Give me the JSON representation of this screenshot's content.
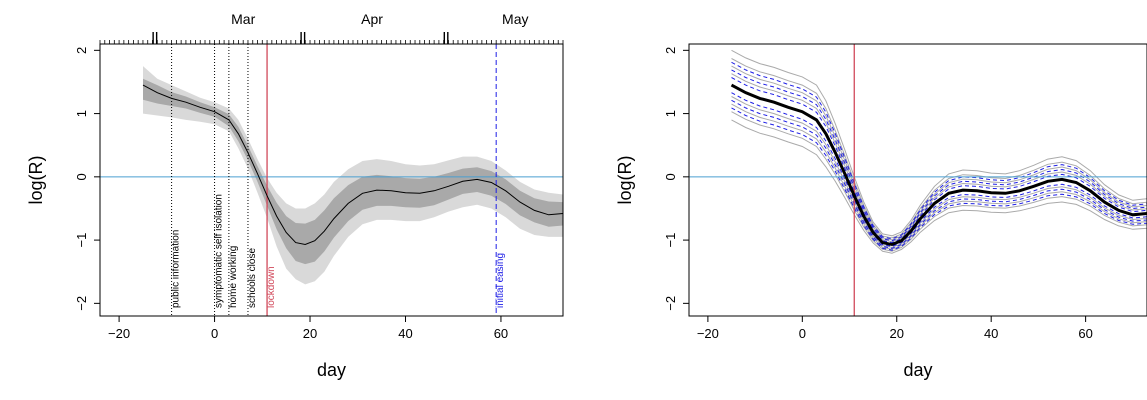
{
  "chart_data": [
    {
      "type": "line",
      "title": "",
      "xlabel": "day",
      "ylabel": "log(R)",
      "xlim": [
        -24,
        73
      ],
      "ylim": [
        -2.2,
        2.1
      ],
      "xticks": [
        -20,
        0,
        20,
        40,
        60
      ],
      "yticks": [
        -2,
        -1,
        0,
        1,
        2
      ],
      "top_axis_months": [
        {
          "label": "Mar",
          "x": 6
        },
        {
          "label": "Apr",
          "x": 33
        },
        {
          "label": "May",
          "x": 63
        }
      ],
      "month_boundaries": [
        -12.5,
        18.5,
        48.5
      ],
      "top_axis_daily_ticks": true,
      "reference_line": {
        "y": 0,
        "color": "#4a9fd0"
      },
      "x": [
        -15,
        -12,
        -9,
        -6,
        -3,
        0,
        3,
        5,
        7,
        9,
        11,
        13,
        15,
        17,
        19,
        21,
        23,
        25,
        28,
        31,
        34,
        37,
        40,
        43,
        46,
        49,
        52,
        55,
        58,
        61,
        64,
        67,
        70,
        73
      ],
      "series": [
        {
          "values": [
            1.45,
            1.33,
            1.24,
            1.18,
            1.1,
            1.03,
            0.9,
            0.68,
            0.38,
            0.05,
            -0.3,
            -0.62,
            -0.88,
            -1.04,
            -1.07,
            -1.01,
            -0.86,
            -0.66,
            -0.42,
            -0.26,
            -0.21,
            -0.22,
            -0.25,
            -0.26,
            -0.22,
            -0.15,
            -0.07,
            -0.04,
            -0.09,
            -0.22,
            -0.4,
            -0.53,
            -0.6,
            -0.58
          ]
        }
      ],
      "band_outer_upper": [
        1.75,
        1.55,
        1.45,
        1.35,
        1.25,
        1.18,
        1.08,
        0.9,
        0.6,
        0.28,
        -0.02,
        -0.25,
        -0.42,
        -0.5,
        -0.5,
        -0.42,
        -0.28,
        -0.08,
        0.12,
        0.25,
        0.28,
        0.25,
        0.2,
        0.18,
        0.2,
        0.26,
        0.32,
        0.32,
        0.25,
        0.1,
        -0.08,
        -0.2,
        -0.25,
        -0.28
      ],
      "band_outer_lower": [
        1.0,
        0.97,
        0.94,
        0.9,
        0.87,
        0.83,
        0.72,
        0.45,
        0.13,
        -0.25,
        -0.65,
        -1.1,
        -1.45,
        -1.62,
        -1.7,
        -1.65,
        -1.5,
        -1.25,
        -0.95,
        -0.75,
        -0.68,
        -0.68,
        -0.7,
        -0.7,
        -0.64,
        -0.55,
        -0.48,
        -0.44,
        -0.5,
        -0.64,
        -0.82,
        -0.92,
        -0.95,
        -0.95
      ],
      "band_inner_upper": [
        1.55,
        1.45,
        1.34,
        1.27,
        1.18,
        1.1,
        0.99,
        0.79,
        0.49,
        0.17,
        -0.14,
        -0.41,
        -0.62,
        -0.73,
        -0.74,
        -0.68,
        -0.53,
        -0.34,
        -0.13,
        0.0,
        0.03,
        0.01,
        -0.02,
        -0.03,
        0.0,
        0.06,
        0.13,
        0.15,
        0.09,
        -0.04,
        -0.22,
        -0.34,
        -0.39,
        -0.4
      ],
      "band_inner_lower": [
        1.22,
        1.16,
        1.12,
        1.08,
        1.01,
        0.95,
        0.8,
        0.56,
        0.26,
        -0.08,
        -0.46,
        -0.83,
        -1.13,
        -1.33,
        -1.38,
        -1.34,
        -1.18,
        -0.96,
        -0.7,
        -0.52,
        -0.46,
        -0.46,
        -0.48,
        -0.49,
        -0.45,
        -0.36,
        -0.27,
        -0.24,
        -0.3,
        -0.43,
        -0.61,
        -0.72,
        -0.79,
        -0.77
      ],
      "interventions": [
        {
          "label": "public information",
          "day": -9,
          "color": "#000000",
          "style": "dotted"
        },
        {
          "label": "symptomatic self isolation",
          "day": 0,
          "color": "#000000",
          "style": "dotted"
        },
        {
          "label": "home working",
          "day": 3,
          "color": "#000000",
          "style": "dotted"
        },
        {
          "label": "schools close",
          "day": 7,
          "color": "#000000",
          "style": "dotted"
        },
        {
          "label": "lockdown",
          "day": 11,
          "color": "#d1495b",
          "style": "solid"
        },
        {
          "label": "initial easing",
          "day": 59,
          "color": "#1e1ee6",
          "style": "dashed"
        }
      ]
    },
    {
      "type": "line",
      "title": "",
      "xlabel": "day",
      "ylabel": "log(R)",
      "xlim": [
        -24,
        73
      ],
      "ylim": [
        -2.2,
        2.1
      ],
      "xticks": [
        -20,
        0,
        20,
        40,
        60
      ],
      "yticks": [
        -2,
        -1,
        0,
        1,
        2
      ],
      "reference_line": {
        "y": 0,
        "color": "#4a9fd0"
      },
      "vertical_line": {
        "day": 11,
        "color": "#d1495b"
      },
      "x": [
        -15,
        -12,
        -9,
        -6,
        -3,
        0,
        3,
        5,
        7,
        9,
        11,
        13,
        15,
        17,
        19,
        21,
        23,
        25,
        28,
        31,
        34,
        37,
        40,
        43,
        46,
        49,
        52,
        55,
        58,
        61,
        64,
        67,
        70,
        73
      ],
      "series": [
        {
          "values": [
            1.45,
            1.33,
            1.24,
            1.18,
            1.1,
            1.03,
            0.9,
            0.68,
            0.38,
            0.05,
            -0.3,
            -0.62,
            -0.88,
            -1.04,
            -1.07,
            -1.01,
            -0.86,
            -0.66,
            -0.42,
            -0.26,
            -0.21,
            -0.22,
            -0.25,
            -0.26,
            -0.22,
            -0.15,
            -0.07,
            -0.04,
            -0.09,
            -0.22,
            -0.4,
            -0.53,
            -0.6,
            -0.58
          ],
          "color": "#000000",
          "style": "thick"
        }
      ],
      "dashed_offsets": [
        -0.36,
        -0.24,
        -0.12,
        0.12,
        0.24,
        0.36
      ],
      "grey_offsets": [
        -0.55,
        -0.42,
        -0.3,
        -0.18,
        0.18,
        0.3,
        0.42,
        0.55
      ]
    }
  ]
}
